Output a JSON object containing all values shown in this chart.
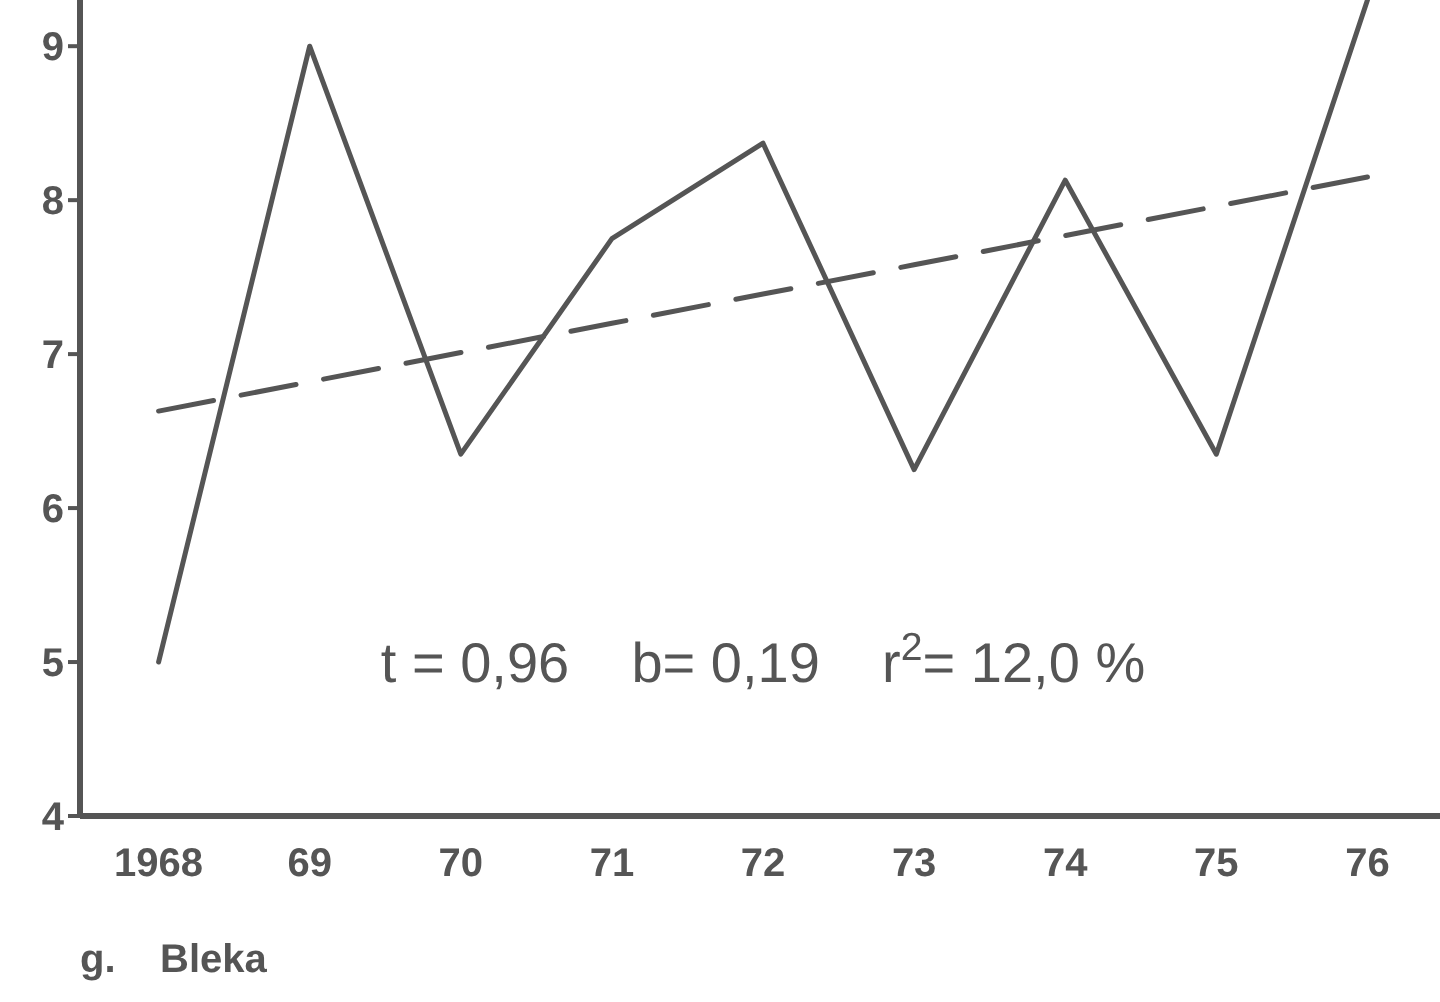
{
  "chart_data": {
    "type": "line",
    "categories": [
      "1968",
      "69",
      "70",
      "71",
      "72",
      "73",
      "74",
      "75",
      "76"
    ],
    "series": [
      {
        "color": "#555555",
        "line_style": "solid",
        "values": [
          5.0,
          9.0,
          6.35,
          7.75,
          8.37,
          6.25,
          8.13,
          6.35,
          9.3
        ]
      },
      {
        "color": "#555555",
        "line_style": "dashed",
        "values": [
          6.63,
          6.82,
          7.01,
          7.2,
          7.39,
          7.58,
          7.77,
          7.96,
          8.15
        ]
      }
    ],
    "ylim": [
      4,
      9.3
    ],
    "yticks": [
      4,
      5,
      6,
      7,
      8,
      9
    ],
    "annotations": [
      "t = 0,96    b= 0,19    r$^{2}$= 12,0 %",
      "g.    Bleka"
    ]
  }
}
